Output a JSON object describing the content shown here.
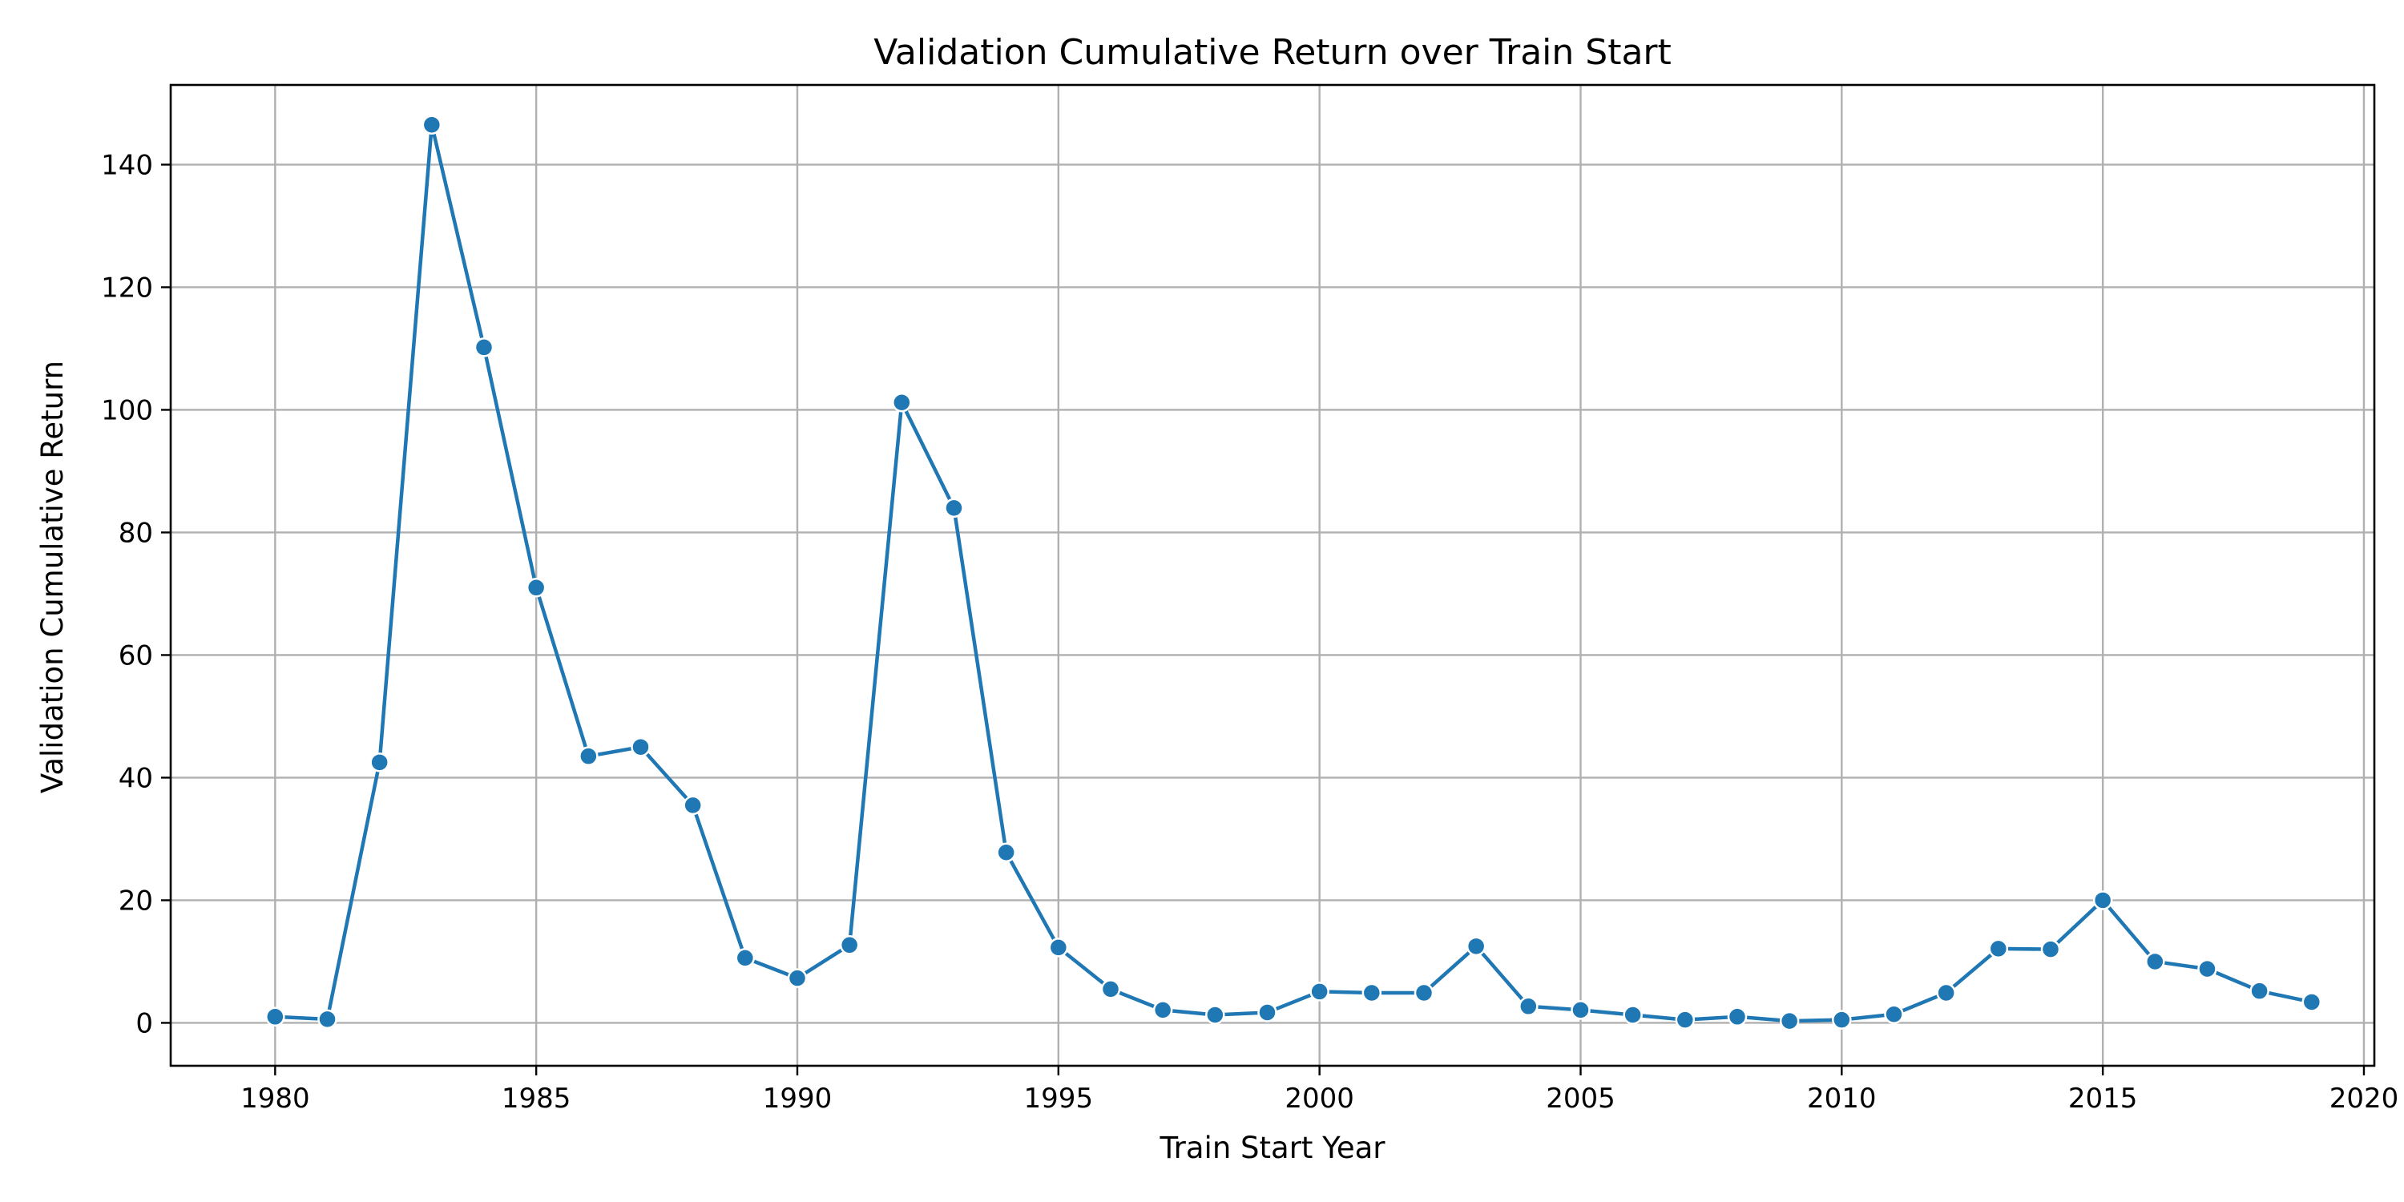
{
  "chart_data": {
    "type": "line",
    "title": "Validation Cumulative Return over Train Start",
    "xlabel": "Train Start Year",
    "ylabel": "Validation Cumulative Return",
    "xlim": [
      1978,
      2020.2
    ],
    "ylim": [
      -7,
      153
    ],
    "xticks": [
      1980,
      1985,
      1990,
      1995,
      2000,
      2005,
      2010,
      2015,
      2020
    ],
    "yticks": [
      0,
      20,
      40,
      60,
      80,
      100,
      120,
      140
    ],
    "grid": true,
    "line_color": "#1f77b4",
    "marker": "circle",
    "series": [
      {
        "x": [
          1980,
          1981,
          1982,
          1983,
          1984,
          1985,
          1986,
          1987,
          1988,
          1989,
          1990,
          1991,
          1992,
          1993,
          1994,
          1995,
          1996,
          1997,
          1998,
          1999,
          2000,
          2001,
          2002,
          2003,
          2004,
          2005,
          2006,
          2007,
          2008,
          2009,
          2010,
          2011,
          2012,
          2013,
          2014,
          2015,
          2016,
          2017,
          2018,
          2019
        ],
        "values": [
          1.0,
          0.6,
          42.5,
          146.5,
          110.2,
          71.0,
          43.5,
          45.0,
          35.5,
          10.6,
          7.3,
          12.7,
          101.2,
          84.0,
          27.8,
          12.3,
          5.5,
          2.1,
          1.3,
          1.7,
          5.1,
          4.9,
          4.9,
          12.5,
          2.7,
          2.1,
          1.3,
          0.5,
          1.0,
          0.3,
          0.5,
          1.4,
          4.9,
          12.1,
          12.0,
          20.0,
          10.0,
          8.8,
          5.2,
          3.4
        ]
      }
    ]
  }
}
